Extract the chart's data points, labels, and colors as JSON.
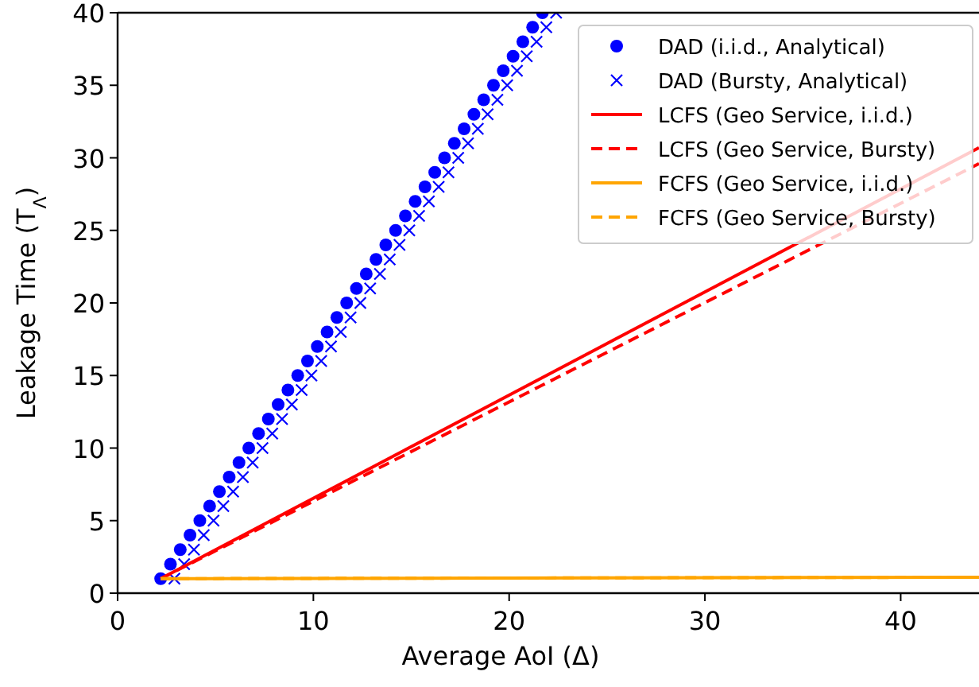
{
  "chart_data": {
    "type": "line",
    "xlabel": "Average AoI (Δ)",
    "ylabel": "Leakage Time (T$_{Λ}$)",
    "xlim": [
      0,
      44
    ],
    "ylim": [
      0,
      40
    ],
    "xticks": [
      0,
      10,
      20,
      30,
      40
    ],
    "yticks": [
      0,
      5,
      10,
      15,
      20,
      25,
      30,
      35,
      40
    ],
    "grid": false,
    "legend": "top right",
    "series": [
      {
        "name": "DAD (i.i.d., Analytical)",
        "type": "scatter",
        "marker": "circle",
        "color": "#0000ff",
        "x": [
          2.2,
          2.7,
          3.2,
          3.7,
          4.2,
          4.7,
          5.2,
          5.7,
          6.2,
          6.7,
          7.2,
          7.7,
          8.2,
          8.7,
          9.2,
          9.7,
          10.2,
          10.7,
          11.2,
          11.7,
          12.2,
          12.7,
          13.2,
          13.7,
          14.2,
          14.7,
          15.2,
          15.7,
          16.2,
          16.7,
          17.2,
          17.7,
          18.2,
          18.7,
          19.2,
          19.7,
          20.2,
          20.7,
          21.2,
          21.7
        ],
        "values": [
          1,
          2,
          3,
          4,
          5,
          6,
          7,
          8,
          9,
          10,
          11,
          12,
          13,
          14,
          15,
          16,
          17,
          18,
          19,
          20,
          21,
          22,
          23,
          24,
          25,
          26,
          27,
          28,
          29,
          30,
          31,
          32,
          33,
          34,
          35,
          36,
          37,
          38,
          39,
          40
        ]
      },
      {
        "name": "DAD (Bursty, Analytical)",
        "type": "scatter",
        "marker": "cross",
        "color": "#0000ff",
        "x": [
          2.9,
          3.4,
          3.9,
          4.4,
          4.9,
          5.4,
          5.9,
          6.4,
          6.9,
          7.4,
          7.9,
          8.4,
          8.9,
          9.4,
          9.9,
          10.4,
          10.9,
          11.4,
          11.9,
          12.4,
          12.9,
          13.4,
          13.9,
          14.4,
          14.9,
          15.4,
          15.9,
          16.4,
          16.9,
          17.4,
          17.9,
          18.4,
          18.9,
          19.4,
          19.9,
          20.4,
          20.9,
          21.4,
          21.9,
          22.4
        ],
        "values": [
          1,
          2,
          3,
          4,
          5,
          6,
          7,
          8,
          9,
          10,
          11,
          12,
          13,
          14,
          15,
          16,
          17,
          18,
          19,
          20,
          21,
          22,
          23,
          24,
          25,
          26,
          27,
          28,
          29,
          30,
          31,
          32,
          33,
          34,
          35,
          36,
          37,
          38,
          39,
          40
        ]
      },
      {
        "name": "LCFS (Geo Service, i.i.d.)",
        "line_style": "solid",
        "color": "#ff0000",
        "x": [
          2.2,
          44
        ],
        "values": [
          1,
          30.7
        ]
      },
      {
        "name": "LCFS (Geo Service, Bursty)",
        "line_style": "dashed",
        "color": "#ff0000",
        "x": [
          2.2,
          44
        ],
        "values": [
          1,
          29.6
        ]
      },
      {
        "name": "FCFS (Geo Service, i.i.d.)",
        "line_style": "solid",
        "color": "#ffa500",
        "x": [
          2.2,
          44
        ],
        "values": [
          1,
          1.1
        ]
      },
      {
        "name": "FCFS (Geo Service, Bursty)",
        "line_style": "dashed",
        "color": "#ffa500",
        "x": [
          2.2,
          44
        ],
        "values": [
          1,
          1.1
        ]
      }
    ]
  }
}
